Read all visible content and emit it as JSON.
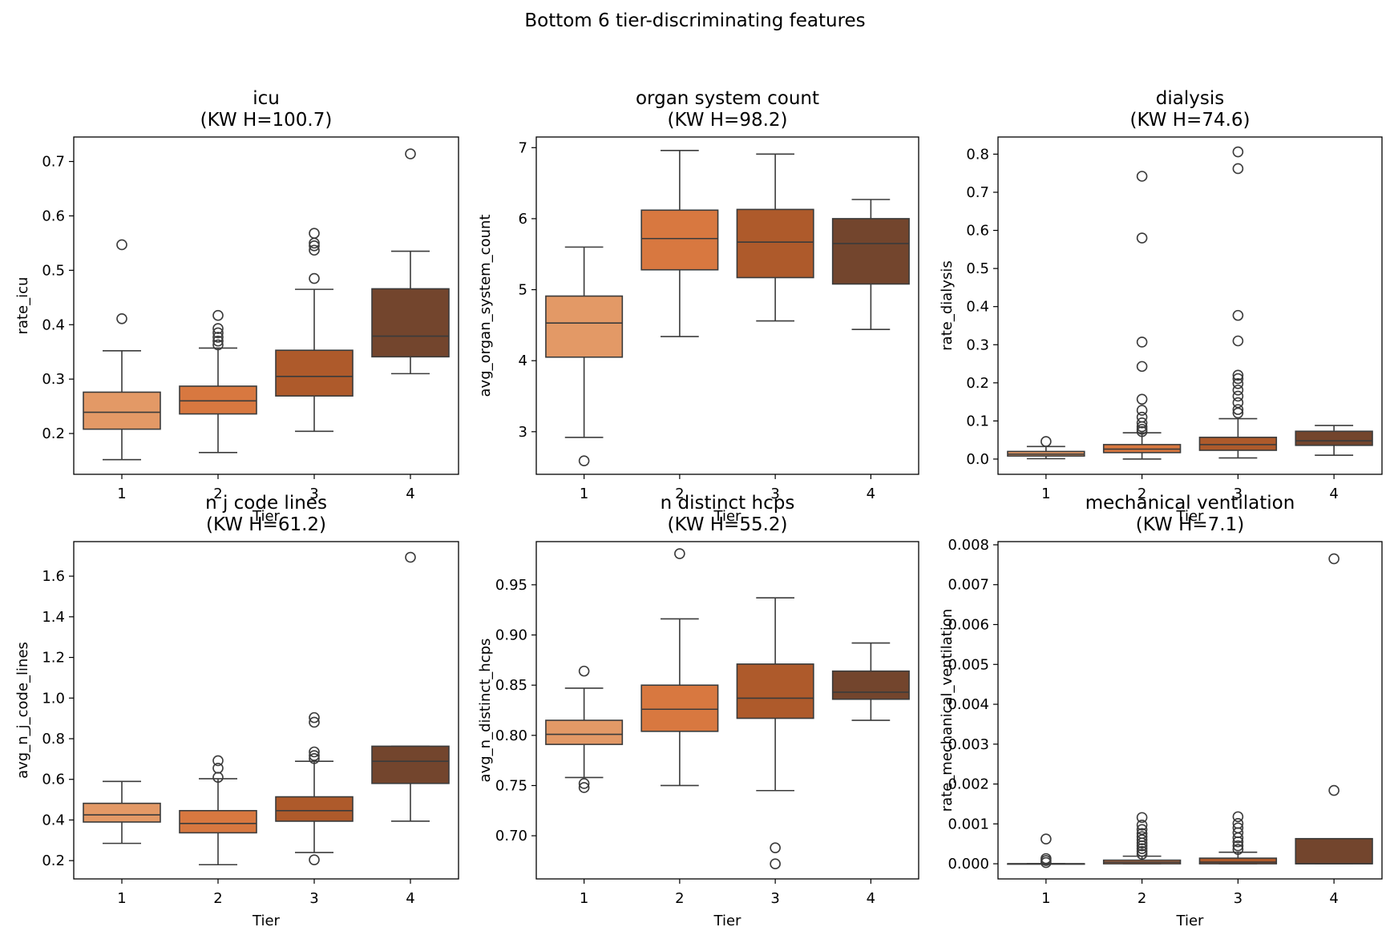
{
  "chart_data": {
    "suptitle": "Bottom 6 tier-discriminating features",
    "type": "boxplot",
    "colors": {
      "1": "#E39966",
      "2": "#D87840",
      "3": "#AE5A2B",
      "4": "#73452D"
    },
    "panels": [
      {
        "title": "icu",
        "subtitle": "(KW H=100.7)",
        "xlabel": "Tier",
        "ylabel": "rate_icu",
        "categories": [
          "1",
          "2",
          "3",
          "4"
        ],
        "ylim": [
          0.125,
          0.745
        ],
        "yticks": [
          0.2,
          0.3,
          0.4,
          0.5,
          0.6,
          0.7
        ],
        "ytick_labels": [
          "0.2",
          "0.3",
          "0.4",
          "0.5",
          "0.6",
          "0.7"
        ],
        "boxes": [
          {
            "tier": "1",
            "whislo": 0.152,
            "q1": 0.208,
            "median": 0.239,
            "q3": 0.276,
            "whishi": 0.352,
            "fliers": [
              0.411,
              0.547
            ]
          },
          {
            "tier": "2",
            "whislo": 0.165,
            "q1": 0.236,
            "median": 0.26,
            "q3": 0.287,
            "whishi": 0.357,
            "fliers": [
              0.363,
              0.37,
              0.377,
              0.385,
              0.393,
              0.417
            ]
          },
          {
            "tier": "3",
            "whislo": 0.204,
            "q1": 0.269,
            "median": 0.305,
            "q3": 0.353,
            "whishi": 0.465,
            "fliers": [
              0.485,
              0.537,
              0.545,
              0.55,
              0.568
            ]
          },
          {
            "tier": "4",
            "whislo": 0.31,
            "q1": 0.341,
            "median": 0.379,
            "q3": 0.466,
            "whishi": 0.535,
            "fliers": [
              0.714
            ]
          }
        ]
      },
      {
        "title": "organ system count",
        "subtitle": "(KW H=98.2)",
        "xlabel": "Tier",
        "ylabel": "avg_organ_system_count",
        "categories": [
          "1",
          "2",
          "3",
          "4"
        ],
        "ylim": [
          2.4,
          7.15
        ],
        "yticks": [
          3,
          4,
          5,
          6,
          7
        ],
        "ytick_labels": [
          "3",
          "4",
          "5",
          "6",
          "7"
        ],
        "boxes": [
          {
            "tier": "1",
            "whislo": 2.92,
            "q1": 4.05,
            "median": 4.53,
            "q3": 4.91,
            "whishi": 5.6,
            "fliers": [
              2.59
            ]
          },
          {
            "tier": "2",
            "whislo": 4.34,
            "q1": 5.28,
            "median": 5.72,
            "q3": 6.12,
            "whishi": 6.96,
            "fliers": []
          },
          {
            "tier": "3",
            "whislo": 4.56,
            "q1": 5.17,
            "median": 5.67,
            "q3": 6.13,
            "whishi": 6.91,
            "fliers": []
          },
          {
            "tier": "4",
            "whislo": 4.44,
            "q1": 5.08,
            "median": 5.65,
            "q3": 6.0,
            "whishi": 6.27,
            "fliers": []
          }
        ]
      },
      {
        "title": "dialysis",
        "subtitle": "(KW H=74.6)",
        "xlabel": "Tier",
        "ylabel": "rate_dialysis",
        "categories": [
          "1",
          "2",
          "3",
          "4"
        ],
        "ylim": [
          -0.04,
          0.845
        ],
        "yticks": [
          0.0,
          0.1,
          0.2,
          0.3,
          0.4,
          0.5,
          0.6,
          0.7,
          0.8
        ],
        "ytick_labels": [
          "0.0",
          "0.1",
          "0.2",
          "0.3",
          "0.4",
          "0.5",
          "0.6",
          "0.7",
          "0.8"
        ],
        "boxes": [
          {
            "tier": "1",
            "whislo": 0.001,
            "q1": 0.008,
            "median": 0.013,
            "q3": 0.02,
            "whishi": 0.033,
            "fliers": [
              0.046
            ]
          },
          {
            "tier": "2",
            "whislo": 0.0,
            "q1": 0.017,
            "median": 0.026,
            "q3": 0.038,
            "whishi": 0.069,
            "fliers": [
              0.072,
              0.078,
              0.085,
              0.095,
              0.11,
              0.128,
              0.157,
              0.243,
              0.307,
              0.58,
              0.742
            ]
          },
          {
            "tier": "3",
            "whislo": 0.003,
            "q1": 0.023,
            "median": 0.038,
            "q3": 0.057,
            "whishi": 0.106,
            "fliers": [
              0.121,
              0.13,
              0.148,
              0.165,
              0.181,
              0.198,
              0.211,
              0.22,
              0.31,
              0.377,
              0.762,
              0.806
            ]
          },
          {
            "tier": "4",
            "whislo": 0.01,
            "q1": 0.036,
            "median": 0.048,
            "q3": 0.073,
            "whishi": 0.088,
            "fliers": []
          }
        ]
      },
      {
        "title": "n j code lines",
        "subtitle": "(KW H=61.2)",
        "xlabel": "Tier",
        "ylabel": "avg_n_j_code_lines",
        "categories": [
          "1",
          "2",
          "3",
          "4"
        ],
        "ylim": [
          0.11,
          1.77
        ],
        "yticks": [
          0.2,
          0.4,
          0.6,
          0.8,
          1.0,
          1.2,
          1.4,
          1.6
        ],
        "ytick_labels": [
          "0.2",
          "0.4",
          "0.6",
          "0.8",
          "1.0",
          "1.2",
          "1.4",
          "1.6"
        ],
        "boxes": [
          {
            "tier": "1",
            "whislo": 0.285,
            "q1": 0.39,
            "median": 0.425,
            "q3": 0.482,
            "whishi": 0.59,
            "fliers": []
          },
          {
            "tier": "2",
            "whislo": 0.18,
            "q1": 0.337,
            "median": 0.383,
            "q3": 0.446,
            "whishi": 0.603,
            "fliers": [
              0.61,
              0.655,
              0.692
            ]
          },
          {
            "tier": "3",
            "whislo": 0.24,
            "q1": 0.394,
            "median": 0.446,
            "q3": 0.514,
            "whishi": 0.689,
            "fliers": [
              0.204,
              0.702,
              0.717,
              0.735,
              0.881,
              0.904
            ]
          },
          {
            "tier": "4",
            "whislo": 0.394,
            "q1": 0.58,
            "median": 0.689,
            "q3": 0.763,
            "whishi": 0.763,
            "fliers": [
              1.693
            ]
          }
        ]
      },
      {
        "title": "n distinct hcps",
        "subtitle": "(KW H=55.2)",
        "xlabel": "Tier",
        "ylabel": "avg_n_distinct_hcps",
        "categories": [
          "1",
          "2",
          "3",
          "4"
        ],
        "ylim": [
          0.657,
          0.993
        ],
        "yticks": [
          0.7,
          0.75,
          0.8,
          0.85,
          0.9,
          0.95
        ],
        "ytick_labels": [
          "0.70",
          "0.75",
          "0.80",
          "0.85",
          "0.90",
          "0.95"
        ],
        "boxes": [
          {
            "tier": "1",
            "whislo": 0.758,
            "q1": 0.791,
            "median": 0.801,
            "q3": 0.815,
            "whishi": 0.847,
            "fliers": [
              0.748,
              0.752,
              0.864
            ]
          },
          {
            "tier": "2",
            "whislo": 0.75,
            "q1": 0.804,
            "median": 0.826,
            "q3": 0.85,
            "whishi": 0.916,
            "fliers": [
              0.981
            ]
          },
          {
            "tier": "3",
            "whislo": 0.745,
            "q1": 0.817,
            "median": 0.837,
            "q3": 0.871,
            "whishi": 0.937,
            "fliers": [
              0.672,
              0.688
            ]
          },
          {
            "tier": "4",
            "whislo": 0.815,
            "q1": 0.836,
            "median": 0.843,
            "q3": 0.864,
            "whishi": 0.892,
            "fliers": []
          }
        ]
      },
      {
        "title": "mechanical ventilation",
        "subtitle": "(KW H=7.1)",
        "xlabel": "Tier",
        "ylabel": "rate_mechanical_ventilation",
        "categories": [
          "1",
          "2",
          "3",
          "4"
        ],
        "ylim": [
          -0.00038,
          0.00808
        ],
        "yticks": [
          0.0,
          0.001,
          0.002,
          0.003,
          0.004,
          0.005,
          0.006,
          0.007,
          0.008
        ],
        "ytick_labels": [
          "0.000",
          "0.001",
          "0.002",
          "0.003",
          "0.004",
          "0.005",
          "0.006",
          "0.007",
          "0.008"
        ],
        "boxes": [
          {
            "tier": "1",
            "whislo": 0.0,
            "q1": 0.0,
            "median": 0.0,
            "q3": 0.0,
            "whishi": 0.0,
            "fliers": [
              3e-05,
              8e-05,
              0.00013,
              0.00062
            ]
          },
          {
            "tier": "2",
            "whislo": 0.0,
            "q1": 0.0,
            "median": 4e-05,
            "q3": 9e-05,
            "whishi": 0.00019,
            "fliers": [
              0.00024,
              0.00031,
              0.00038,
              0.00045,
              0.00052,
              0.0006,
              0.00068,
              0.00076,
              0.00086,
              0.00097,
              0.00116
            ]
          },
          {
            "tier": "3",
            "whislo": 0.0,
            "q1": 0.0,
            "median": 4e-05,
            "q3": 0.00014,
            "whishi": 0.00029,
            "fliers": [
              0.00036,
              0.00045,
              0.00055,
              0.00065,
              0.00078,
              0.0009,
              0.00101,
              0.00118
            ]
          },
          {
            "tier": "4",
            "whislo": 0.0,
            "q1": 0.0,
            "median": 0.0,
            "q3": 0.00063,
            "whishi": 0.00063,
            "fliers": [
              0.00184,
              0.00765
            ]
          }
        ]
      }
    ]
  }
}
